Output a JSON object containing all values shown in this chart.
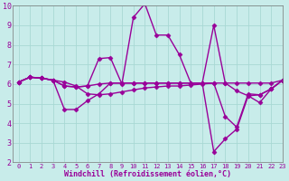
{
  "line1_x": [
    0,
    1,
    2,
    3,
    4,
    5,
    6,
    7,
    8,
    9,
    10,
    11,
    12,
    13,
    14,
    15,
    16,
    17,
    18,
    19,
    20,
    21,
    22,
    23
  ],
  "line1_y": [
    6.1,
    6.35,
    6.3,
    6.2,
    5.9,
    5.85,
    5.9,
    6.0,
    6.05,
    6.05,
    6.05,
    6.05,
    6.05,
    6.05,
    6.05,
    6.05,
    6.05,
    6.05,
    6.05,
    6.05,
    6.05,
    6.05,
    6.05,
    6.2
  ],
  "line2_x": [
    0,
    1,
    2,
    3,
    4,
    5,
    6,
    7,
    8,
    9,
    10,
    11,
    12,
    13,
    14,
    15,
    16,
    17,
    18,
    19,
    20,
    21,
    22,
    23
  ],
  "line2_y": [
    6.1,
    6.35,
    6.3,
    6.2,
    5.9,
    5.85,
    5.9,
    7.3,
    7.35,
    6.0,
    9.4,
    10.1,
    8.5,
    8.5,
    7.5,
    6.05,
    6.05,
    9.0,
    6.05,
    5.65,
    5.4,
    5.05,
    5.75,
    6.2
  ],
  "line3_x": [
    0,
    1,
    2,
    3,
    4,
    5,
    6,
    7,
    8,
    9,
    10,
    11,
    12,
    13,
    14,
    15,
    16,
    17,
    18,
    19,
    20,
    21,
    22,
    23
  ],
  "line3_y": [
    6.1,
    6.35,
    6.3,
    6.2,
    4.7,
    4.7,
    5.15,
    5.5,
    6.05,
    6.05,
    6.05,
    6.05,
    6.05,
    6.05,
    6.05,
    6.05,
    6.05,
    2.55,
    3.2,
    3.7,
    5.4,
    5.45,
    5.75,
    6.2
  ],
  "line4_x": [
    0,
    1,
    2,
    3,
    4,
    5,
    6,
    7,
    8,
    9,
    10,
    11,
    12,
    13,
    14,
    15,
    16,
    17,
    18,
    19,
    20,
    21,
    22,
    23
  ],
  "line4_y": [
    6.1,
    6.35,
    6.3,
    6.2,
    6.1,
    5.9,
    5.5,
    5.45,
    5.5,
    5.6,
    5.7,
    5.8,
    5.85,
    5.9,
    5.9,
    5.95,
    6.0,
    6.05,
    4.35,
    3.8,
    5.5,
    5.45,
    5.75,
    6.2
  ],
  "color": "#990099",
  "bg_color": "#c8ecea",
  "grid_color": "#a8d8d4",
  "xlabel": "Windchill (Refroidissement éolien,°C)",
  "xlim": [
    -0.5,
    23
  ],
  "ylim": [
    2,
    10
  ],
  "xticks": [
    0,
    1,
    2,
    3,
    4,
    5,
    6,
    7,
    8,
    9,
    10,
    11,
    12,
    13,
    14,
    15,
    16,
    17,
    18,
    19,
    20,
    21,
    22,
    23
  ],
  "yticks": [
    2,
    3,
    4,
    5,
    6,
    7,
    8,
    9,
    10
  ],
  "marker": "D",
  "markersize": 2.5,
  "linewidth": 1.0
}
